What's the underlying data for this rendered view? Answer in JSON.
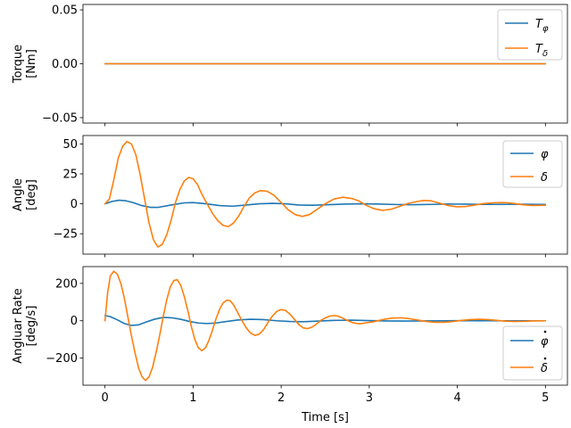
{
  "chart_data": [
    {
      "type": "line",
      "panel": "torque",
      "ylabel": [
        "Torque",
        "[Nm]"
      ],
      "xlabel": "",
      "xlim": [
        -0.25,
        5.25
      ],
      "ylim": [
        -0.055,
        0.055
      ],
      "xticks": [
        0,
        1,
        2,
        3,
        4,
        5
      ],
      "yticks": [
        -0.05,
        0.0,
        0.05
      ],
      "ytick_labels": [
        "−0.05",
        "0.00",
        "0.05"
      ],
      "show_xtick_labels": false,
      "legend_position": "top-right",
      "series": [
        {
          "name": "T_φ",
          "label_main": "T",
          "label_sub": "φ",
          "color": "#1f77b4",
          "x": [
            0,
            5
          ],
          "y": [
            0,
            0
          ]
        },
        {
          "name": "T_δ",
          "label_main": "T",
          "label_sub": "δ",
          "color": "#ff7f0e",
          "x": [
            0,
            5
          ],
          "y": [
            0,
            0
          ]
        }
      ]
    },
    {
      "type": "line",
      "panel": "angle",
      "ylabel": [
        "Angle",
        "[deg]"
      ],
      "xlabel": "",
      "xlim": [
        -0.25,
        5.25
      ],
      "ylim": [
        -42,
        57
      ],
      "xticks": [
        0,
        1,
        2,
        3,
        4,
        5
      ],
      "yticks": [
        -25,
        0,
        25,
        50
      ],
      "ytick_labels": [
        "−25",
        "0",
        "25",
        "50"
      ],
      "show_xtick_labels": false,
      "legend_position": "top-right",
      "series": [
        {
          "name": "φ",
          "label_main": "φ",
          "label_sub": "",
          "color": "#1f77b4",
          "x": [
            0,
            0.08,
            0.16,
            0.24,
            0.32,
            0.42,
            0.52,
            0.6,
            0.75,
            0.9,
            1.0,
            1.15,
            1.3,
            1.45,
            1.6,
            1.75,
            1.9,
            2.05,
            2.2,
            2.35,
            2.5,
            2.7,
            2.9,
            3.1,
            3.3,
            3.5,
            3.7,
            3.9,
            4.1,
            4.3,
            4.5,
            4.7,
            5.0
          ],
          "y": [
            0,
            2,
            3,
            2.5,
            1,
            -1.5,
            -3,
            -3,
            -1,
            0.8,
            1,
            0,
            -1.5,
            -2,
            -1,
            0,
            0.4,
            0,
            -1,
            -1.2,
            -0.8,
            -0.3,
            0,
            -0.2,
            -0.6,
            -0.7,
            -0.5,
            -0.2,
            -0.3,
            -0.5,
            -0.5,
            -0.4,
            -0.5
          ]
        },
        {
          "name": "δ",
          "label_main": "δ",
          "label_sub": "",
          "color": "#ff7f0e",
          "x": [
            0,
            0.05,
            0.1,
            0.15,
            0.2,
            0.25,
            0.3,
            0.35,
            0.4,
            0.45,
            0.5,
            0.55,
            0.6,
            0.65,
            0.7,
            0.75,
            0.8,
            0.85,
            0.9,
            0.95,
            1.0,
            1.05,
            1.1,
            1.16,
            1.22,
            1.28,
            1.34,
            1.4,
            1.46,
            1.52,
            1.58,
            1.64,
            1.7,
            1.76,
            1.84,
            1.92,
            2.0,
            2.08,
            2.16,
            2.24,
            2.32,
            2.4,
            2.5,
            2.6,
            2.7,
            2.8,
            2.88,
            2.96,
            3.05,
            3.15,
            3.25,
            3.35,
            3.45,
            3.55,
            3.62,
            3.7,
            3.8,
            3.9,
            4.0,
            4.1,
            4.2,
            4.3,
            4.4,
            4.5,
            4.57,
            4.65,
            4.75,
            4.85,
            5.0
          ],
          "y": [
            0,
            4,
            20,
            38,
            48,
            52,
            50,
            41,
            24,
            4,
            -16,
            -30,
            -36,
            -34,
            -26,
            -14,
            1,
            12,
            19,
            22,
            21,
            16,
            8,
            0,
            -8,
            -14,
            -18,
            -19,
            -16,
            -10,
            -2,
            5,
            9,
            11,
            10.5,
            7,
            1,
            -5,
            -9,
            -10.5,
            -9,
            -5,
            0,
            4,
            5.5,
            4.5,
            2.5,
            -1,
            -4,
            -5.5,
            -4.5,
            -2,
            0.5,
            2,
            2.8,
            2.5,
            0.5,
            -1.5,
            -2.5,
            -2.2,
            -1,
            0.2,
            0.8,
            1,
            0.9,
            0.2,
            -0.8,
            -1.4,
            -1.2
          ]
        }
      ]
    },
    {
      "type": "line",
      "panel": "rate",
      "ylabel": [
        "Angluar Rate",
        "[deg/s]"
      ],
      "xlabel": "Time [s]",
      "xlim": [
        -0.25,
        5.25
      ],
      "ylim": [
        -345,
        290
      ],
      "xticks": [
        0,
        1,
        2,
        3,
        4,
        5
      ],
      "yticks": [
        -200,
        0,
        200
      ],
      "ytick_labels": [
        "−200",
        "0",
        "200"
      ],
      "xtick_labels": [
        "0",
        "1",
        "2",
        "3",
        "4",
        "5"
      ],
      "show_xtick_labels": true,
      "legend_position": "bottom-right",
      "series": [
        {
          "name": "φ̇",
          "label_main": "φ",
          "label_sub": "",
          "label_dot": true,
          "color": "#1f77b4",
          "x": [
            0,
            0.06,
            0.14,
            0.22,
            0.3,
            0.38,
            0.46,
            0.56,
            0.66,
            0.76,
            0.86,
            0.96,
            1.06,
            1.16,
            1.26,
            1.36,
            1.5,
            1.65,
            1.8,
            1.95,
            2.1,
            2.25,
            2.4,
            2.6,
            2.8,
            3.0,
            3.2,
            3.4,
            3.6,
            3.8,
            4.0,
            4.2,
            4.4,
            4.6,
            4.8,
            5.0
          ],
          "y": [
            28,
            22,
            5,
            -15,
            -25,
            -22,
            -8,
            8,
            18,
            16,
            8,
            -4,
            -12,
            -15,
            -12,
            -5,
            4,
            8,
            6,
            0,
            -4,
            -5,
            -2,
            2,
            3,
            1,
            -1,
            -1.5,
            -1,
            0,
            0.5,
            0.5,
            0,
            -0.3,
            0,
            0
          ]
        },
        {
          "name": "δ̇",
          "label_main": "δ",
          "label_sub": "",
          "label_dot": true,
          "color": "#ff7f0e",
          "x": [
            0,
            0.03,
            0.06,
            0.1,
            0.14,
            0.18,
            0.22,
            0.26,
            0.3,
            0.34,
            0.38,
            0.42,
            0.46,
            0.5,
            0.54,
            0.58,
            0.62,
            0.66,
            0.7,
            0.74,
            0.78,
            0.82,
            0.86,
            0.9,
            0.94,
            0.98,
            1.02,
            1.06,
            1.1,
            1.14,
            1.18,
            1.22,
            1.26,
            1.3,
            1.34,
            1.38,
            1.42,
            1.46,
            1.5,
            1.55,
            1.6,
            1.65,
            1.7,
            1.75,
            1.8,
            1.85,
            1.9,
            1.95,
            2.0,
            2.05,
            2.1,
            2.15,
            2.2,
            2.25,
            2.3,
            2.35,
            2.4,
            2.45,
            2.5,
            2.55,
            2.6,
            2.65,
            2.7,
            2.75,
            2.8,
            2.85,
            2.9,
            2.95,
            3.05,
            3.15,
            3.25,
            3.35,
            3.45,
            3.55,
            3.65,
            3.75,
            3.85,
            3.95,
            4.05,
            4.15,
            4.25,
            4.35,
            4.45,
            4.55,
            4.65,
            4.75,
            4.85,
            5.0
          ],
          "y": [
            0,
            150,
            240,
            265,
            250,
            200,
            120,
            20,
            -80,
            -170,
            -250,
            -300,
            -320,
            -300,
            -250,
            -170,
            -80,
            20,
            110,
            180,
            215,
            220,
            190,
            130,
            55,
            -30,
            -100,
            -145,
            -160,
            -145,
            -105,
            -50,
            10,
            60,
            95,
            110,
            108,
            85,
            50,
            5,
            -35,
            -65,
            -78,
            -72,
            -48,
            -10,
            25,
            50,
            60,
            55,
            35,
            8,
            -20,
            -38,
            -42,
            -34,
            -18,
            2,
            15,
            25,
            28,
            24,
            14,
            2,
            -8,
            -14,
            -16,
            -12,
            -5,
            6,
            14,
            16,
            12,
            4,
            -4,
            -8,
            -8,
            -4,
            2,
            6,
            8,
            6,
            2,
            -2,
            -4,
            -3,
            -1,
            0
          ]
        }
      ]
    }
  ]
}
